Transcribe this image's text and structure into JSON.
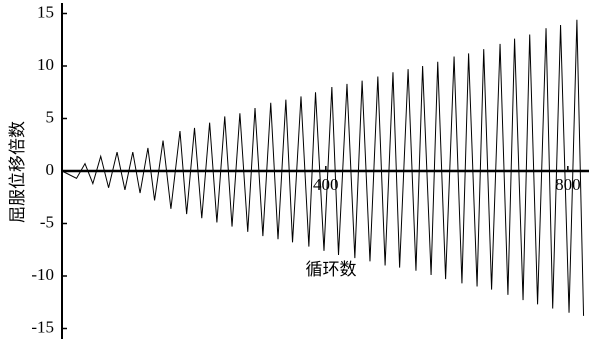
{
  "chart_data": {
    "type": "line",
    "y_label": "屈服位移倍数",
    "x_label": "循环数",
    "x": [
      -36,
      -12,
      2,
      15,
      28,
      41,
      55,
      68,
      81,
      93,
      106,
      117,
      131,
      144,
      159,
      170,
      183,
      195,
      208,
      220,
      233,
      245,
      258,
      271,
      283,
      296,
      309,
      321,
      334,
      345,
      359,
      372,
      383,
      397,
      410,
      421,
      435,
      448,
      460,
      473,
      486,
      498,
      511,
      522,
      536,
      549,
      560,
      574,
      585,
      598,
      612,
      625,
      636,
      650,
      661,
      674,
      688,
      701,
      712,
      726,
      737,
      750,
      764,
      775,
      788,
      802,
      815,
      826
    ],
    "values": [
      0,
      -0.7,
      0.7,
      -1.2,
      1.4,
      -1.6,
      1.8,
      -1.8,
      1.8,
      -2.1,
      2.2,
      -2.8,
      2.9,
      -3.6,
      3.8,
      -4.1,
      4.1,
      -4.5,
      4.6,
      -4.9,
      5.2,
      -5.3,
      5.5,
      -5.8,
      6.0,
      -6.2,
      6.5,
      -6.5,
      6.8,
      -6.8,
      7.1,
      -7.2,
      7.5,
      -7.6,
      8.0,
      -8.0,
      8.3,
      -8.3,
      8.6,
      -8.6,
      9.0,
      -9.0,
      9.4,
      -9.2,
      9.7,
      -9.5,
      10.0,
      -9.9,
      10.4,
      -10.3,
      10.9,
      -10.7,
      11.2,
      -11.0,
      11.6,
      -11.3,
      12.1,
      -11.8,
      12.6,
      -12.3,
      13.0,
      -12.7,
      13.6,
      -13.1,
      13.9,
      -13.5,
      14.4,
      -13.8
    ],
    "color": "#000000",
    "xlim": [
      -36,
      835
    ],
    "xticks": [
      400,
      800
    ],
    "ylim": [
      -16,
      16
    ],
    "yticks": [
      -15,
      -10,
      -5,
      0,
      5,
      10,
      15
    ]
  }
}
